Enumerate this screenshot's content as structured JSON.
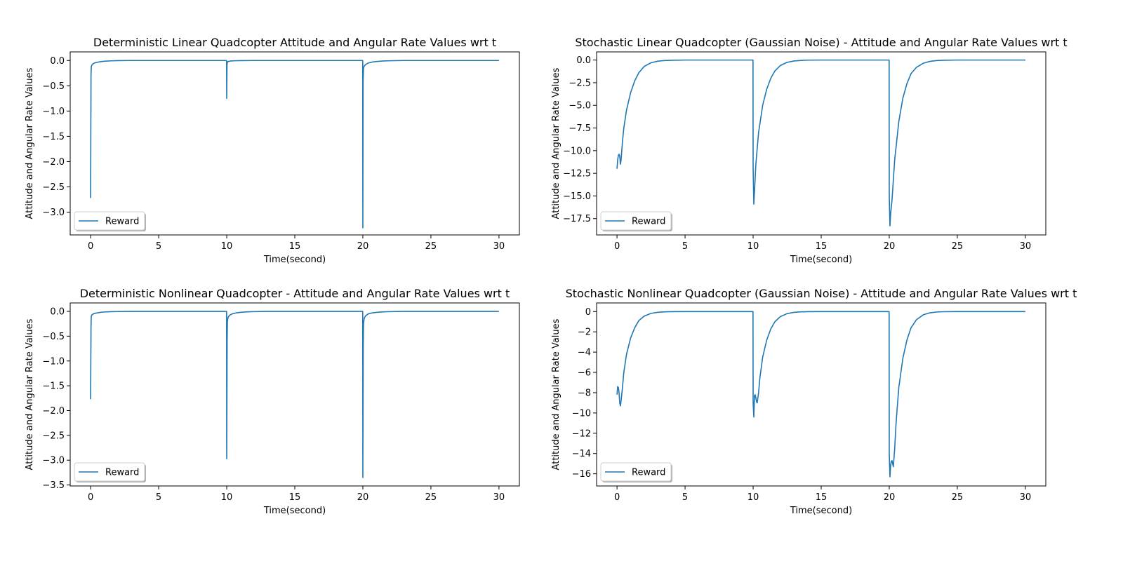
{
  "chart_data": [
    {
      "type": "line",
      "title": "Deterministic Linear Quadcopter Attitude and Angular Rate Values wrt t",
      "xlabel": "Time(second)",
      "ylabel": "Attitude and Angular Rate Values",
      "xlim": [
        -1.5,
        31.5
      ],
      "ylim": [
        -3.45,
        0.17
      ],
      "xticks": [
        0,
        5,
        10,
        15,
        20,
        25,
        30
      ],
      "xtick_labels": [
        "0",
        "5",
        "10",
        "15",
        "20",
        "25",
        "30"
      ],
      "yticks": [
        0.0,
        -0.5,
        -1.0,
        -1.5,
        -2.0,
        -2.5,
        -3.0
      ],
      "ytick_labels": [
        "0.0",
        "−0.5",
        "−1.0",
        "−1.5",
        "−2.0",
        "−2.5",
        "−3.0"
      ],
      "legend": {
        "label": "Reward",
        "location": "lower-left"
      },
      "series": [
        {
          "name": "Reward",
          "color": "#1f77b4",
          "x": [
            0,
            0.03,
            0.05,
            0.1,
            0.2,
            0.4,
            0.7,
            1.0,
            1.5,
            2.0,
            3.0,
            9.99,
            10.0,
            10.02,
            10.05,
            10.1,
            10.3,
            10.6,
            11.0,
            12.0,
            19.99,
            20.0,
            20.02,
            20.05,
            20.1,
            20.2,
            20.4,
            20.7,
            21.0,
            21.5,
            22.0,
            23.0,
            30.0
          ],
          "y": [
            -2.72,
            -0.3,
            -0.12,
            -0.09,
            -0.06,
            -0.04,
            -0.025,
            -0.015,
            -0.007,
            -0.003,
            0.0,
            0.0,
            -0.75,
            -0.1,
            -0.03,
            -0.02,
            -0.01,
            -0.005,
            -0.002,
            0.0,
            0.0,
            -3.31,
            -0.4,
            -0.15,
            -0.11,
            -0.08,
            -0.05,
            -0.03,
            -0.02,
            -0.01,
            -0.005,
            0.0,
            0.0
          ]
        }
      ]
    },
    {
      "type": "line",
      "title": "Stochastic Linear Quadcopter (Gaussian Noise) - Attitude and Angular Rate Values wrt t",
      "xlabel": "Time(second)",
      "ylabel": "Attitude and Angular Rate Values",
      "xlim": [
        -1.5,
        31.5
      ],
      "ylim": [
        -19.3,
        0.9
      ],
      "xticks": [
        0,
        5,
        10,
        15,
        20,
        25,
        30
      ],
      "xtick_labels": [
        "0",
        "5",
        "10",
        "15",
        "20",
        "25",
        "30"
      ],
      "yticks": [
        0.0,
        -2.5,
        -5.0,
        -7.5,
        -10.0,
        -12.5,
        -15.0,
        -17.5
      ],
      "ytick_labels": [
        "0.0",
        "−2.5",
        "−5.0",
        "−7.5",
        "−10.0",
        "−12.5",
        "−15.0",
        "−17.5"
      ],
      "legend": {
        "label": "Reward",
        "location": "lower-left"
      },
      "series": [
        {
          "name": "Reward",
          "color": "#1f77b4",
          "x": [
            0,
            0.05,
            0.1,
            0.15,
            0.2,
            0.25,
            0.3,
            0.4,
            0.5,
            0.7,
            1.0,
            1.3,
            1.6,
            2.0,
            2.5,
            3.0,
            3.5,
            4.0,
            5.0,
            9.99,
            10.0,
            10.05,
            10.1,
            10.2,
            10.4,
            10.7,
            11.0,
            11.3,
            11.6,
            12.0,
            12.5,
            13.0,
            13.5,
            14.0,
            15.0,
            19.99,
            20.0,
            20.05,
            20.1,
            20.2,
            20.4,
            20.7,
            21.0,
            21.3,
            21.6,
            22.0,
            22.5,
            23.0,
            23.5,
            24.0,
            25.0,
            30.0
          ],
          "y": [
            -12.0,
            -11.0,
            -10.5,
            -10.4,
            -10.6,
            -11.5,
            -11.0,
            -9.0,
            -7.5,
            -5.5,
            -3.6,
            -2.3,
            -1.4,
            -0.7,
            -0.3,
            -0.12,
            -0.05,
            -0.02,
            0.0,
            0.0,
            -12.0,
            -15.9,
            -14.5,
            -11.5,
            -8.0,
            -5.0,
            -3.2,
            -2.0,
            -1.2,
            -0.6,
            -0.25,
            -0.1,
            -0.04,
            -0.01,
            0.0,
            0.0,
            -15.0,
            -18.3,
            -17.0,
            -15.5,
            -11.0,
            -6.8,
            -4.2,
            -2.6,
            -1.5,
            -0.8,
            -0.35,
            -0.14,
            -0.05,
            -0.02,
            0.0,
            0.0
          ]
        }
      ]
    },
    {
      "type": "line",
      "title": "Deterministic Nonlinear Quadcopter - Attitude and Angular Rate Values wrt t",
      "xlabel": "Time(second)",
      "ylabel": "Attitude and Angular Rate Values",
      "xlim": [
        -1.5,
        31.5
      ],
      "ylim": [
        -3.52,
        0.17
      ],
      "xticks": [
        0,
        5,
        10,
        15,
        20,
        25,
        30
      ],
      "xtick_labels": [
        "0",
        "5",
        "10",
        "15",
        "20",
        "25",
        "30"
      ],
      "yticks": [
        0.0,
        -0.5,
        -1.0,
        -1.5,
        -2.0,
        -2.5,
        -3.0,
        -3.5
      ],
      "ytick_labels": [
        "0.0",
        "−0.5",
        "−1.0",
        "−1.5",
        "−2.0",
        "−2.5",
        "−3.0",
        "−3.5"
      ],
      "legend": {
        "label": "Reward",
        "location": "lower-left"
      },
      "series": [
        {
          "name": "Reward",
          "color": "#1f77b4",
          "x": [
            0,
            0.03,
            0.05,
            0.1,
            0.2,
            0.4,
            0.7,
            1.0,
            1.5,
            2.0,
            3.0,
            9.99,
            10.0,
            10.03,
            10.05,
            10.1,
            10.2,
            10.4,
            10.7,
            11.0,
            11.5,
            12.0,
            13.0,
            19.99,
            20.0,
            20.03,
            20.05,
            20.1,
            20.2,
            20.4,
            20.7,
            21.0,
            21.5,
            22.0,
            23.0,
            30.0
          ],
          "y": [
            -1.77,
            -0.3,
            -0.1,
            -0.07,
            -0.05,
            -0.035,
            -0.02,
            -0.012,
            -0.006,
            -0.003,
            0.0,
            0.0,
            -2.97,
            -0.6,
            -0.2,
            -0.12,
            -0.08,
            -0.05,
            -0.03,
            -0.02,
            -0.01,
            -0.005,
            0.0,
            0.0,
            -3.35,
            -0.7,
            -0.25,
            -0.14,
            -0.09,
            -0.05,
            -0.03,
            -0.02,
            -0.01,
            -0.005,
            0.0,
            0.0
          ]
        }
      ]
    },
    {
      "type": "line",
      "title": "Stochastic Nonlinear Quadcopter (Gaussian Noise) - Attitude and Angular Rate Values wrt t",
      "xlabel": "Time(second)",
      "ylabel": "Attitude and Angular Rate Values",
      "xlim": [
        -1.5,
        31.5
      ],
      "ylim": [
        -17.2,
        0.85
      ],
      "xticks": [
        0,
        5,
        10,
        15,
        20,
        25,
        30
      ],
      "xtick_labels": [
        "0",
        "5",
        "10",
        "15",
        "20",
        "25",
        "30"
      ],
      "yticks": [
        0,
        -2,
        -4,
        -6,
        -8,
        -10,
        -12,
        -14,
        -16
      ],
      "ytick_labels": [
        "0",
        "−2",
        "−4",
        "−6",
        "−8",
        "−10",
        "−12",
        "−14",
        "−16"
      ],
      "legend": {
        "label": "Reward",
        "location": "lower-left"
      },
      "series": [
        {
          "name": "Reward",
          "color": "#1f77b4",
          "x": [
            0,
            0.05,
            0.1,
            0.15,
            0.2,
            0.25,
            0.3,
            0.4,
            0.5,
            0.7,
            1.0,
            1.3,
            1.6,
            2.0,
            2.5,
            3.0,
            3.5,
            4.0,
            5.0,
            9.99,
            10.0,
            10.05,
            10.1,
            10.15,
            10.2,
            10.25,
            10.3,
            10.4,
            10.5,
            10.7,
            11.0,
            11.3,
            11.6,
            12.0,
            12.5,
            13.0,
            13.5,
            14.0,
            15.0,
            19.99,
            20.0,
            20.05,
            20.1,
            20.15,
            20.2,
            20.25,
            20.3,
            20.4,
            20.5,
            20.7,
            21.0,
            21.3,
            21.6,
            22.0,
            22.5,
            23.0,
            23.5,
            24.0,
            25.0,
            30.0
          ],
          "y": [
            -8.2,
            -7.4,
            -7.5,
            -8.0,
            -9.0,
            -9.3,
            -8.8,
            -7.5,
            -6.0,
            -4.2,
            -2.6,
            -1.6,
            -0.9,
            -0.45,
            -0.18,
            -0.07,
            -0.03,
            -0.01,
            0.0,
            0.0,
            -9.0,
            -10.4,
            -8.3,
            -8.2,
            -8.5,
            -8.9,
            -9.0,
            -8.0,
            -6.5,
            -4.5,
            -2.8,
            -1.7,
            -1.0,
            -0.5,
            -0.2,
            -0.08,
            -0.03,
            -0.01,
            0.0,
            0.0,
            -14.0,
            -16.3,
            -15.2,
            -14.8,
            -14.7,
            -15.0,
            -15.3,
            -13.5,
            -11.0,
            -7.5,
            -4.6,
            -2.8,
            -1.6,
            -0.8,
            -0.32,
            -0.12,
            -0.04,
            -0.015,
            0.0,
            0.0
          ]
        }
      ]
    }
  ]
}
